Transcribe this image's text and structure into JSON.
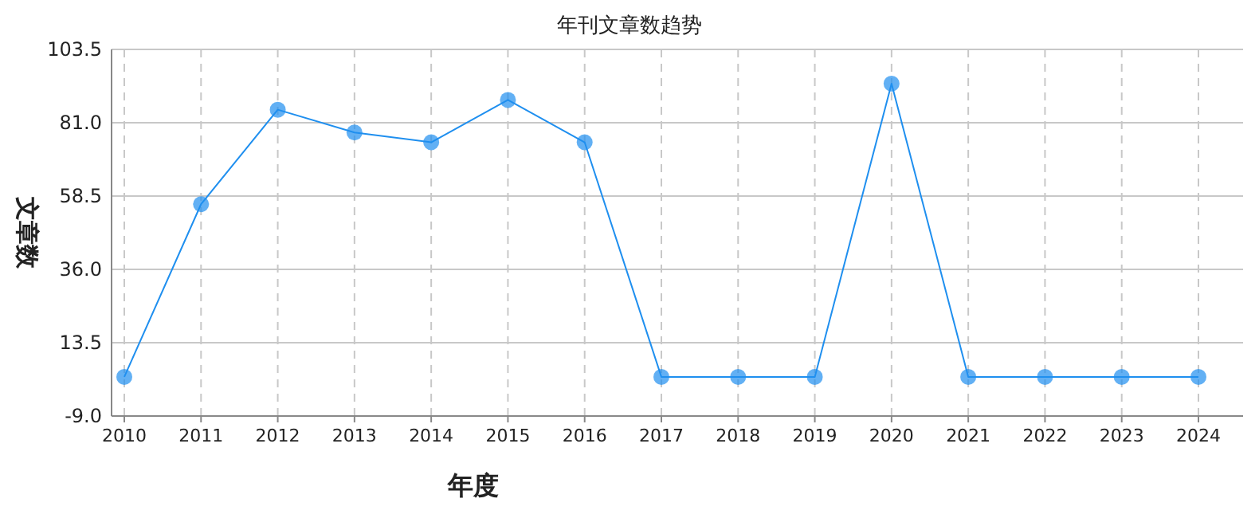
{
  "chart_data": {
    "type": "line",
    "title": "年刊文章数趋势",
    "xlabel": "年度",
    "ylabel": "文章数",
    "categories": [
      "2010",
      "2011",
      "2012",
      "2013",
      "2014",
      "2015",
      "2016",
      "2017",
      "2018",
      "2019",
      "2020",
      "2021",
      "2022",
      "2023",
      "2024"
    ],
    "series": [
      {
        "color": "#1f8fef",
        "values": [
          3,
          56,
          85,
          78,
          75,
          88,
          75,
          3,
          3,
          3,
          93,
          3,
          3,
          3,
          3
        ]
      }
    ],
    "ylim": [
      -9,
      103.5
    ],
    "yticks": [
      {
        "value": -9,
        "label": "-9.0"
      },
      {
        "value": 13.5,
        "label": "13.5"
      },
      {
        "value": 36,
        "label": "36.0"
      },
      {
        "value": 58.5,
        "label": "58.5"
      },
      {
        "value": 81,
        "label": "81.0"
      },
      {
        "value": 103.5,
        "label": "103.5"
      }
    ],
    "grid": true,
    "marker": "circle",
    "line_style": "solid"
  }
}
